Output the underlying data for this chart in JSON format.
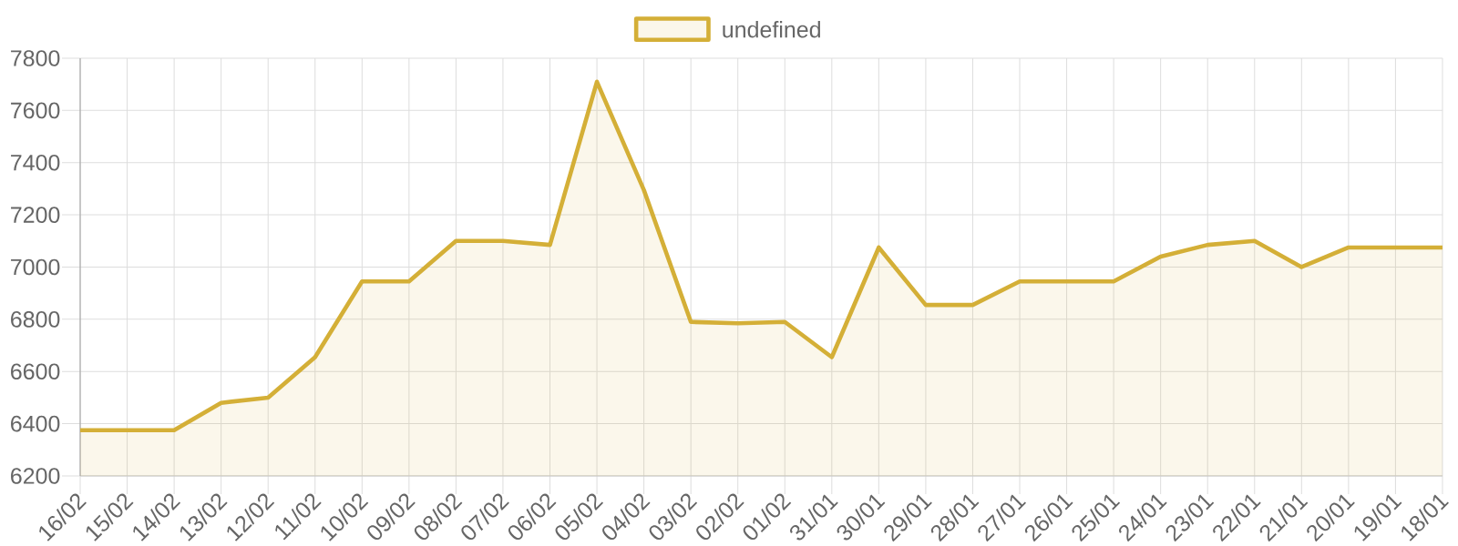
{
  "chart_data": {
    "type": "area",
    "categories": [
      "16/02",
      "15/02",
      "14/02",
      "13/02",
      "12/02",
      "11/02",
      "10/02",
      "09/02",
      "08/02",
      "07/02",
      "06/02",
      "05/02",
      "04/02",
      "03/02",
      "02/02",
      "01/02",
      "31/01",
      "30/01",
      "29/01",
      "28/01",
      "27/01",
      "26/01",
      "25/01",
      "24/01",
      "23/01",
      "22/01",
      "21/01",
      "20/01",
      "19/01",
      "18/01"
    ],
    "series": [
      {
        "name": "undefined",
        "color": "#d4af37",
        "values": [
          6375,
          6375,
          6375,
          6480,
          6500,
          6655,
          6945,
          6945,
          7100,
          7100,
          7085,
          7710,
          7295,
          6790,
          6785,
          6790,
          6655,
          7075,
          6855,
          6855,
          6945,
          6945,
          6945,
          7040,
          7085,
          7100,
          7000,
          7075,
          7075,
          7075
        ]
      }
    ],
    "ylim": [
      6200,
      7800
    ],
    "yticks": [
      6200,
      6400,
      6600,
      6800,
      7000,
      7200,
      7400,
      7600,
      7800
    ],
    "grid": true,
    "legend": "top"
  }
}
